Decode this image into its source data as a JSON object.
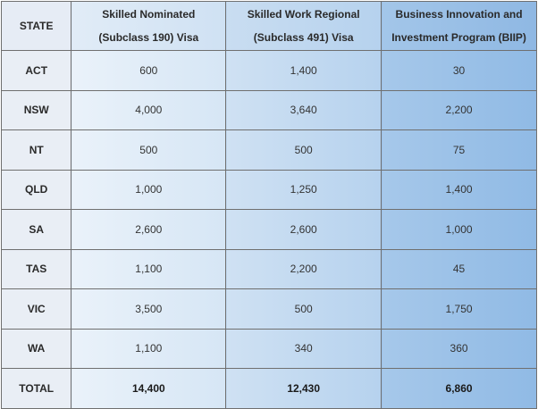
{
  "headers": {
    "state": "STATE",
    "subclass190": [
      "Skilled Nominated",
      "(Subclass 190) Visa"
    ],
    "subclass491": [
      "Skilled Work Regional",
      "(Subclass 491) Visa"
    ],
    "biip": [
      "Business Innovation and",
      "Investment Program (BIIP)"
    ]
  },
  "rows": [
    {
      "state": "ACT",
      "v190": "600",
      "v491": "1,400",
      "biip": "30"
    },
    {
      "state": "NSW",
      "v190": "4,000",
      "v491": "3,640",
      "biip": "2,200"
    },
    {
      "state": "NT",
      "v190": "500",
      "v491": "500",
      "biip": "75"
    },
    {
      "state": "QLD",
      "v190": "1,000",
      "v491": "1,250",
      "biip": "1,400"
    },
    {
      "state": "SA",
      "v190": "2,600",
      "v491": "2,600",
      "biip": "1,000"
    },
    {
      "state": "TAS",
      "v190": "1,100",
      "v491": "2,200",
      "biip": "45"
    },
    {
      "state": "VIC",
      "v190": "3,500",
      "v491": "500",
      "biip": "1,750"
    },
    {
      "state": "WA",
      "v190": "1,100",
      "v491": "340",
      "biip": "360"
    }
  ],
  "total": {
    "state": "TOTAL",
    "v190": "14,400",
    "v491": "12,430",
    "biip": "6,860"
  }
}
